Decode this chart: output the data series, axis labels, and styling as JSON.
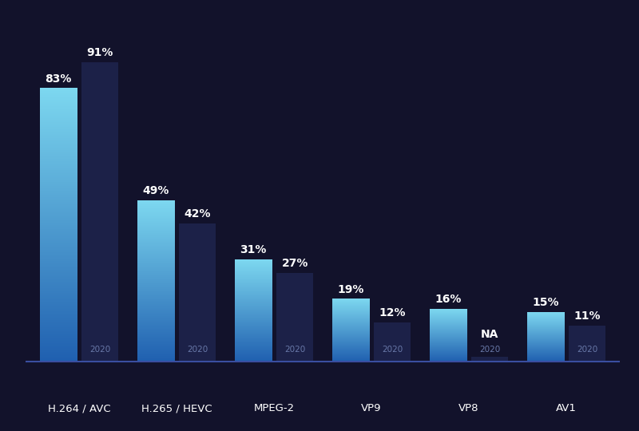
{
  "categories": [
    "H.264 / AVC",
    "H.265 / HEVC",
    "MPEG-2",
    "VP9",
    "VP8",
    "AV1"
  ],
  "values_2021": [
    83,
    49,
    31,
    19,
    16,
    15
  ],
  "values_2020": [
    91,
    42,
    27,
    12,
    0,
    11
  ],
  "labels_2021": [
    "83%",
    "49%",
    "31%",
    "19%",
    "16%",
    "15%"
  ],
  "labels_2020": [
    "91%",
    "42%",
    "27%",
    "12%",
    "NA",
    "11%"
  ],
  "vp8_na": true,
  "bg_color": "#12122b",
  "bar_color_2021_top": "#7dd8f0",
  "bar_color_2021_bottom": "#2060b0",
  "bar_color_2020": "#1c2148",
  "text_color": "#ffffff",
  "label_2020_color": "#6878a8",
  "axis_line_color": "#3a4ea0",
  "bar_width": 0.38,
  "bar_gap": 0.05,
  "ymax": 100,
  "label_fontsize": 10,
  "cat_fontsize": 9.5,
  "year_fontsize": 7.5
}
